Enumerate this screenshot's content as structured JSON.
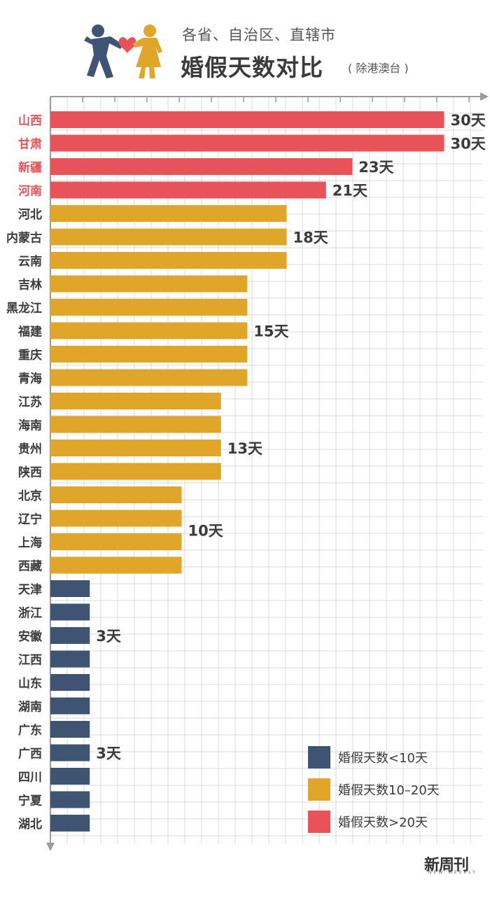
{
  "header": {
    "subtitle": "各省、自治区、直辖市",
    "title": "婚假天数对比",
    "title_note": "( 除港澳台 )"
  },
  "watermark": {
    "text": "新周刊",
    "sub": "NEW WEEKLY"
  },
  "logo": {
    "icon": "couple-heart-icon"
  },
  "colors": {
    "red": "#e8535a",
    "gold": "#e0a62a",
    "navy": "#3f5372",
    "grid": "#d9d9d9",
    "axis": "#9b9b9b",
    "label_dark": "#3b3b3b",
    "label_red": "#e8535a"
  },
  "chart_data": {
    "type": "bar",
    "orientation": "horizontal",
    "categories": [
      "山西",
      "甘肃",
      "新疆",
      "河南",
      "河北",
      "内蒙古",
      "云南",
      "吉林",
      "黑龙江",
      "福建",
      "重庆",
      "青海",
      "江苏",
      "海南",
      "贵州",
      "陕西",
      "北京",
      "辽宁",
      "上海",
      "西藏",
      "天津",
      "浙江",
      "安徽",
      "江西",
      "山东",
      "湖南",
      "广东",
      "广西",
      "四川",
      "宁夏",
      "湖北"
    ],
    "values": [
      30,
      30,
      23,
      21,
      18,
      18,
      18,
      15,
      15,
      15,
      15,
      15,
      13,
      13,
      13,
      13,
      10,
      10,
      10,
      10,
      3,
      3,
      3,
      3,
      3,
      3,
      3,
      3,
      3,
      3,
      3
    ],
    "groups": [
      "red",
      "red",
      "red",
      "red",
      "gold",
      "gold",
      "gold",
      "gold",
      "gold",
      "gold",
      "gold",
      "gold",
      "gold",
      "gold",
      "gold",
      "gold",
      "gold",
      "gold",
      "gold",
      "gold",
      "navy",
      "navy",
      "navy",
      "navy",
      "navy",
      "navy",
      "navy",
      "navy",
      "navy",
      "navy",
      "navy"
    ],
    "data_labels": [
      {
        "row": 0,
        "text": "30天"
      },
      {
        "row": 1,
        "text": "30天"
      },
      {
        "row": 2,
        "text": "23天"
      },
      {
        "row": 3,
        "text": "21天"
      },
      {
        "row": 5,
        "text": "18天"
      },
      {
        "row": 9,
        "text": "15天"
      },
      {
        "row": 14,
        "text": "13天"
      },
      {
        "row": 17.5,
        "text": "10天"
      },
      {
        "row": 22,
        "text": "3天"
      },
      {
        "row": 27,
        "text": "3天"
      }
    ],
    "xlim": [
      0,
      32
    ],
    "grid": true,
    "legend_position": "bottom-right",
    "legend": [
      {
        "group": "navy",
        "label": "婚假天数<10天"
      },
      {
        "group": "gold",
        "label": "婚假天数10–20天"
      },
      {
        "group": "red",
        "label": "婚假天数>20天"
      }
    ]
  }
}
